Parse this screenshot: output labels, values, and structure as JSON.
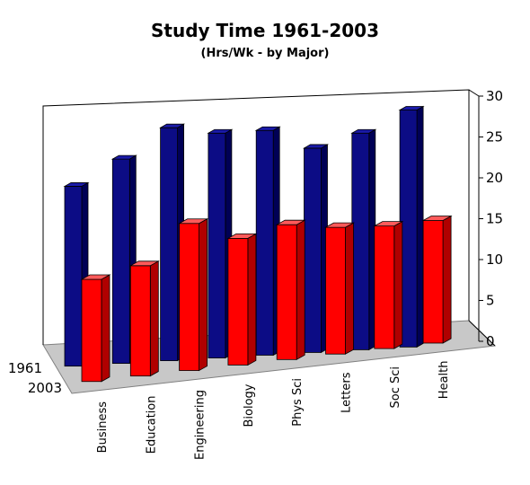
{
  "chart_data": {
    "type": "bar",
    "title": "Study Time 1961-2003",
    "subtitle": "(Hrs/Wk - by Major)",
    "categories": [
      "Business",
      "Education",
      "Engineering",
      "Biology",
      "Phys Sci",
      "Letters",
      "Soc Sci",
      "Health"
    ],
    "series": [
      {
        "name": "1961",
        "values": [
          22,
          25,
          28.5,
          27.5,
          27.5,
          25,
          26.5,
          29
        ],
        "color": "#0c0c85"
      },
      {
        "name": "2003",
        "values": [
          12.5,
          13.5,
          18,
          15.5,
          16.5,
          15.5,
          15,
          15
        ],
        "color": "#ff0000"
      }
    ],
    "ylim": [
      0,
      30
    ],
    "yticks": [
      0,
      5,
      10,
      15,
      20,
      25,
      30
    ],
    "style": "3d-grouped-depth"
  }
}
